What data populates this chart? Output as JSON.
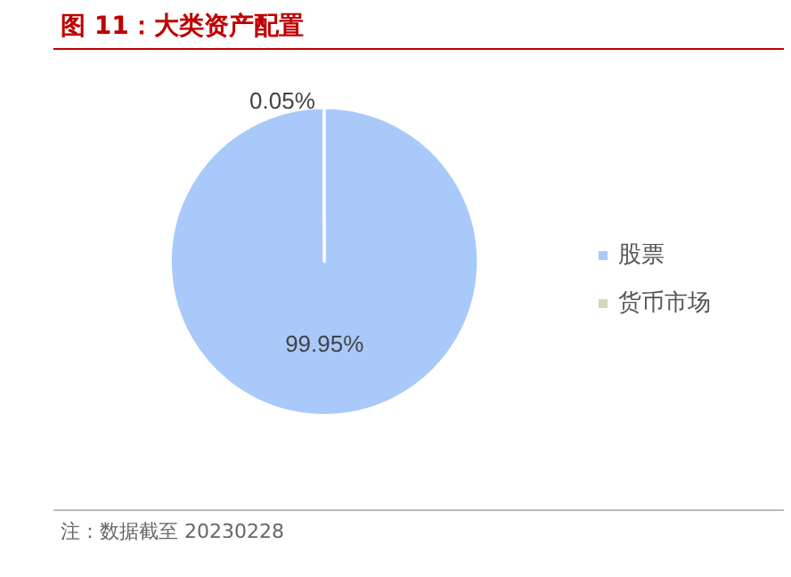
{
  "chart_data": {
    "type": "pie",
    "title": "图 11：大类资产配置",
    "categories": [
      "股票",
      "货币市场"
    ],
    "values": [
      99.95,
      0.05
    ],
    "colors": [
      "#a9c9fb",
      "#d8d5bf"
    ],
    "value_labels": [
      "99.95%",
      "0.05%"
    ],
    "legend": "right",
    "annotations": [
      "注：数据截至 20230228"
    ]
  }
}
